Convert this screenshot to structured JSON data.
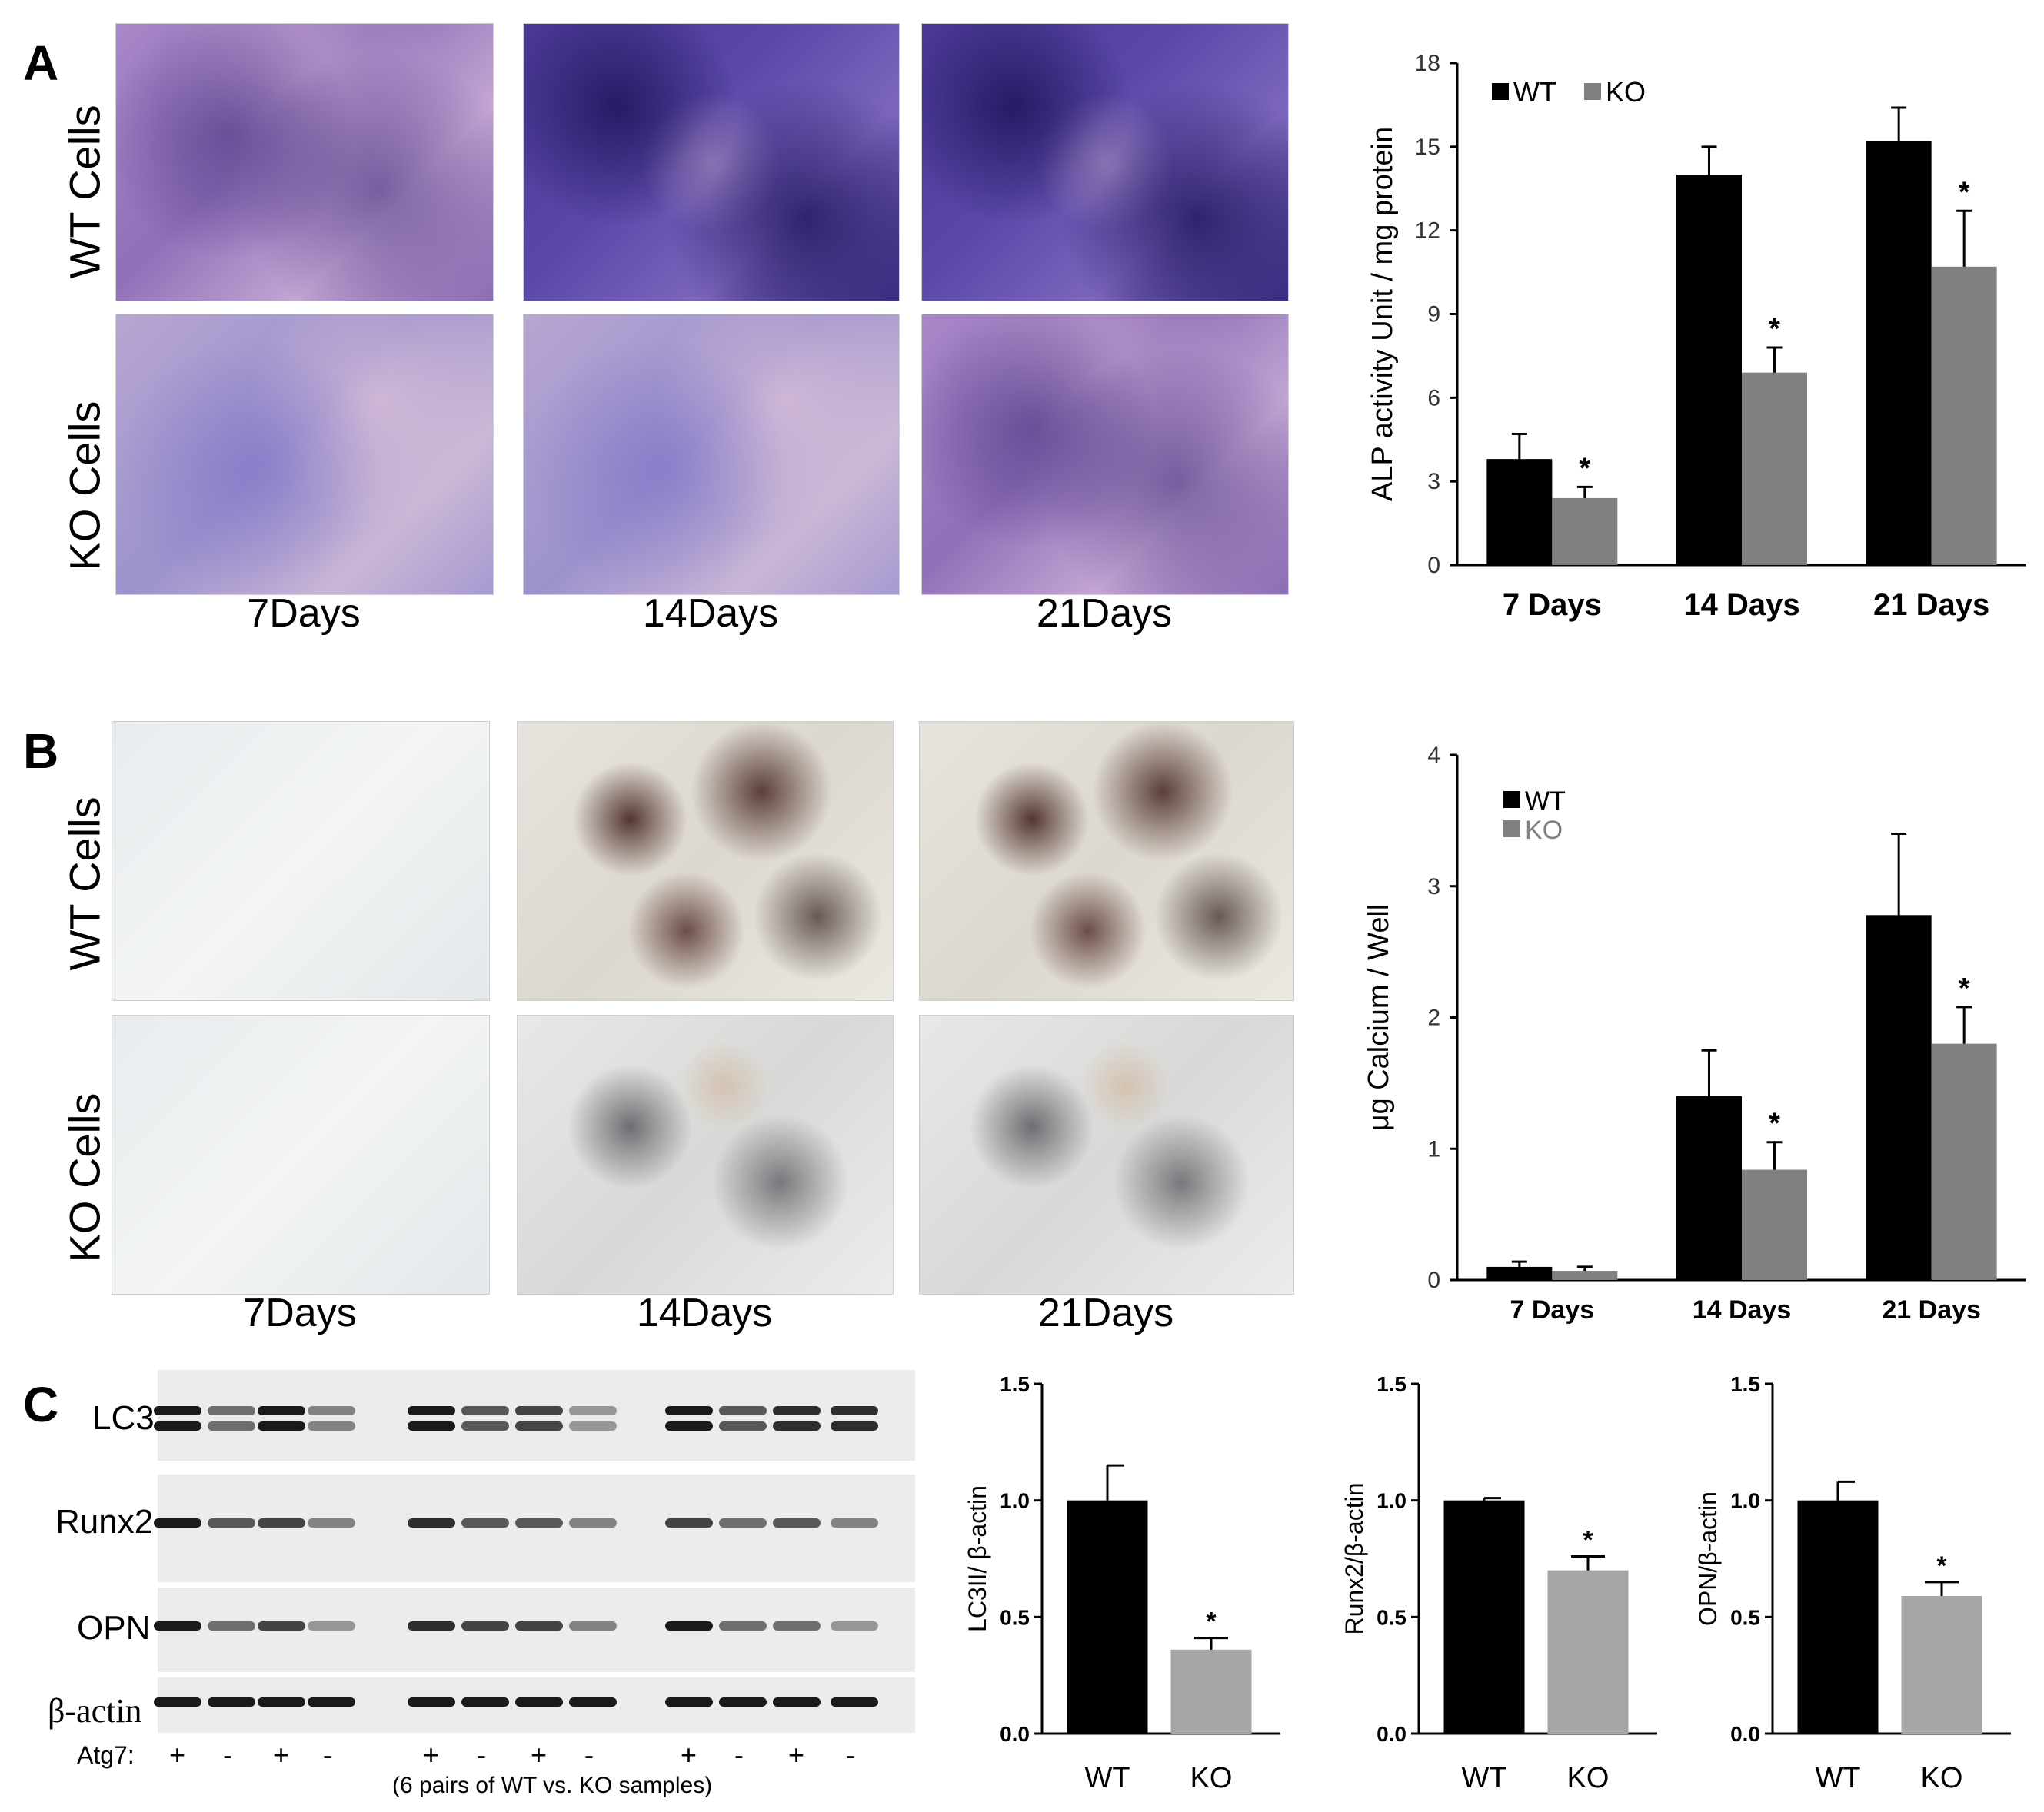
{
  "panels": {
    "a": {
      "letter": "A",
      "row_labels": [
        "WT Cells",
        "KO Cells"
      ],
      "col_labels": [
        "7Days",
        "14Days",
        "21Days"
      ]
    },
    "b": {
      "letter": "B",
      "row_labels": [
        "WT Cells",
        "KO Cells"
      ],
      "col_labels": [
        "7Days",
        "14Days",
        "21Days"
      ]
    },
    "c": {
      "letter": "C",
      "blot_labels": [
        "LC3",
        "Runx2",
        "OPN",
        "β-actin"
      ],
      "atg7_label": "Atg7:",
      "atg7_signs": [
        "+",
        "-",
        "+",
        "-",
        "+",
        "-",
        "+",
        "-",
        "+",
        "-",
        "+",
        "-"
      ],
      "caption": "(6 pairs of WT vs. KO samples)"
    }
  },
  "colors": {
    "wt": "#000000",
    "ko_a": "#808080",
    "ko_c": "#a6a6a6"
  },
  "chart_data": [
    {
      "type": "bar",
      "ylabel": "ALP activity Unit / mg protein",
      "categories": [
        "7 Days",
        "14 Days",
        "21 Days"
      ],
      "ylim": [
        0,
        18
      ],
      "yticks": [
        "0",
        "3",
        "6",
        "9",
        "12",
        "15",
        "18"
      ],
      "legend": "top-left",
      "series": [
        {
          "name": "WT",
          "values": [
            3.8,
            14.0,
            15.2
          ],
          "errors": [
            0.9,
            1.0,
            1.2
          ]
        },
        {
          "name": "KO",
          "values": [
            2.4,
            6.9,
            10.7
          ],
          "errors": [
            0.4,
            0.9,
            2.0
          ]
        }
      ],
      "significance": [
        "*",
        "*",
        "*"
      ]
    },
    {
      "type": "bar",
      "ylabel": "μg Calcium / Well",
      "categories": [
        "7 Days",
        "14 Days",
        "21 Days"
      ],
      "ylim": [
        0,
        4
      ],
      "yticks": [
        "0",
        "1",
        "2",
        "3",
        "4"
      ],
      "legend": "top-left",
      "series": [
        {
          "name": "WT",
          "values": [
            0.1,
            1.4,
            2.78
          ],
          "errors": [
            0.04,
            0.35,
            0.62
          ]
        },
        {
          "name": "KO",
          "values": [
            0.07,
            0.84,
            1.8
          ],
          "errors": [
            0.03,
            0.21,
            0.28
          ]
        }
      ],
      "significance": [
        "",
        "*",
        "*"
      ]
    },
    {
      "type": "bar",
      "ylabel": "LC3II/ β-actin",
      "categories": [
        "WT",
        "KO"
      ],
      "ylim": [
        0,
        1.5
      ],
      "yticks": [
        "0.0",
        "0.5",
        "1.0",
        "1.5"
      ],
      "values": [
        1.0,
        0.36
      ],
      "errors": [
        0.15,
        0.05
      ],
      "significance": [
        "",
        "*"
      ]
    },
    {
      "type": "bar",
      "ylabel": "Runx2/β-actin",
      "categories": [
        "WT",
        "KO"
      ],
      "ylim": [
        0,
        1.5
      ],
      "yticks": [
        "0.0",
        "0.5",
        "1.0",
        "1.5"
      ],
      "values": [
        1.0,
        0.7
      ],
      "errors": [
        0.01,
        0.06
      ],
      "significance": [
        "",
        "*"
      ]
    },
    {
      "type": "bar",
      "ylabel": "OPN/β-actin",
      "categories": [
        "WT",
        "KO"
      ],
      "ylim": [
        0,
        1.5
      ],
      "yticks": [
        "0.0",
        "0.5",
        "1.0",
        "1.5"
      ],
      "values": [
        1.0,
        0.59
      ],
      "errors": [
        0.08,
        0.06
      ],
      "significance": [
        "",
        "*"
      ]
    }
  ]
}
